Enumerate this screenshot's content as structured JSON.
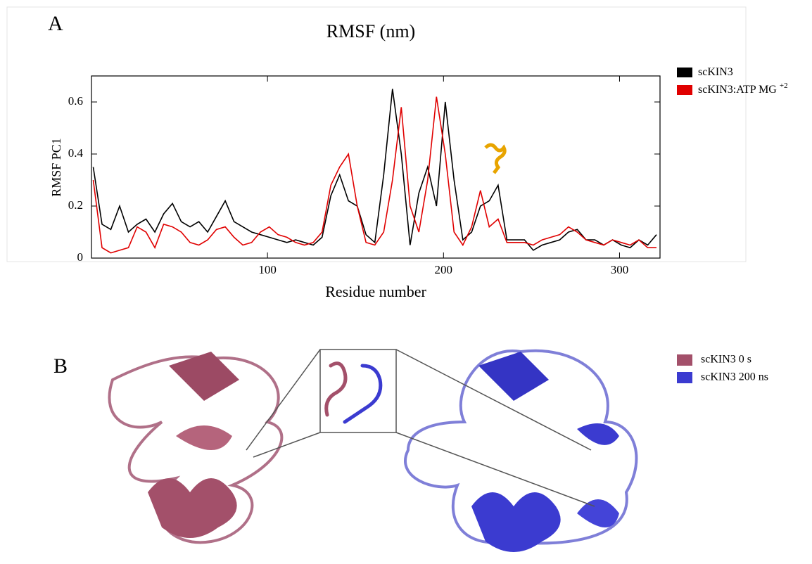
{
  "panel_a_label": "A",
  "chart_data": {
    "type": "line",
    "title": "RMSF (nm)",
    "x_label": "Residue number",
    "y_label": "RMSF PC1",
    "x": [
      1,
      6,
      11,
      16,
      21,
      26,
      31,
      36,
      41,
      46,
      51,
      56,
      61,
      66,
      71,
      76,
      81,
      86,
      91,
      96,
      101,
      106,
      111,
      116,
      121,
      126,
      131,
      136,
      141,
      146,
      151,
      156,
      161,
      166,
      171,
      176,
      181,
      186,
      191,
      196,
      201,
      206,
      211,
      216,
      221,
      226,
      231,
      236,
      241,
      246,
      251,
      256,
      261,
      266,
      271,
      276,
      281,
      286,
      291,
      296,
      301,
      306,
      311,
      316,
      321
    ],
    "series": [
      {
        "name": "scKIN3",
        "color": "#000000",
        "values": [
          0.35,
          0.13,
          0.11,
          0.2,
          0.1,
          0.13,
          0.15,
          0.1,
          0.17,
          0.21,
          0.14,
          0.12,
          0.14,
          0.1,
          0.16,
          0.22,
          0.14,
          0.12,
          0.1,
          0.09,
          0.08,
          0.07,
          0.06,
          0.07,
          0.06,
          0.05,
          0.08,
          0.24,
          0.32,
          0.22,
          0.2,
          0.09,
          0.06,
          0.32,
          0.65,
          0.4,
          0.05,
          0.25,
          0.35,
          0.2,
          0.6,
          0.3,
          0.07,
          0.1,
          0.2,
          0.22,
          0.28,
          0.07,
          0.07,
          0.07,
          0.03,
          0.05,
          0.06,
          0.07,
          0.1,
          0.11,
          0.07,
          0.07,
          0.05,
          0.07,
          0.05,
          0.04,
          0.07,
          0.05,
          0.09
        ]
      },
      {
        "name": "scKIN3:ATP MG",
        "name_sup": "+2",
        "color": "#e00000",
        "values": [
          0.3,
          0.04,
          0.02,
          0.03,
          0.04,
          0.12,
          0.1,
          0.04,
          0.13,
          0.12,
          0.1,
          0.06,
          0.05,
          0.07,
          0.11,
          0.12,
          0.08,
          0.05,
          0.06,
          0.1,
          0.12,
          0.09,
          0.08,
          0.06,
          0.05,
          0.06,
          0.1,
          0.28,
          0.35,
          0.4,
          0.2,
          0.06,
          0.05,
          0.1,
          0.3,
          0.58,
          0.2,
          0.1,
          0.3,
          0.62,
          0.4,
          0.1,
          0.05,
          0.12,
          0.26,
          0.12,
          0.15,
          0.06,
          0.06,
          0.06,
          0.05,
          0.07,
          0.08,
          0.09,
          0.12,
          0.1,
          0.07,
          0.06,
          0.05,
          0.07,
          0.06,
          0.05,
          0.07,
          0.04,
          0.04
        ]
      }
    ],
    "xlim": [
      0,
      323
    ],
    "xticks": [
      100,
      200,
      300
    ],
    "ylim": [
      0,
      0.7
    ],
    "yticks": [
      0,
      0.2,
      0.4,
      0.6
    ]
  },
  "panel_b": {
    "label": "B",
    "legend": [
      {
        "name": "scKIN3 0 s",
        "color": "#a3506a"
      },
      {
        "name": "scKIN3 200 ns",
        "color": "#3b3bd0"
      }
    ]
  }
}
